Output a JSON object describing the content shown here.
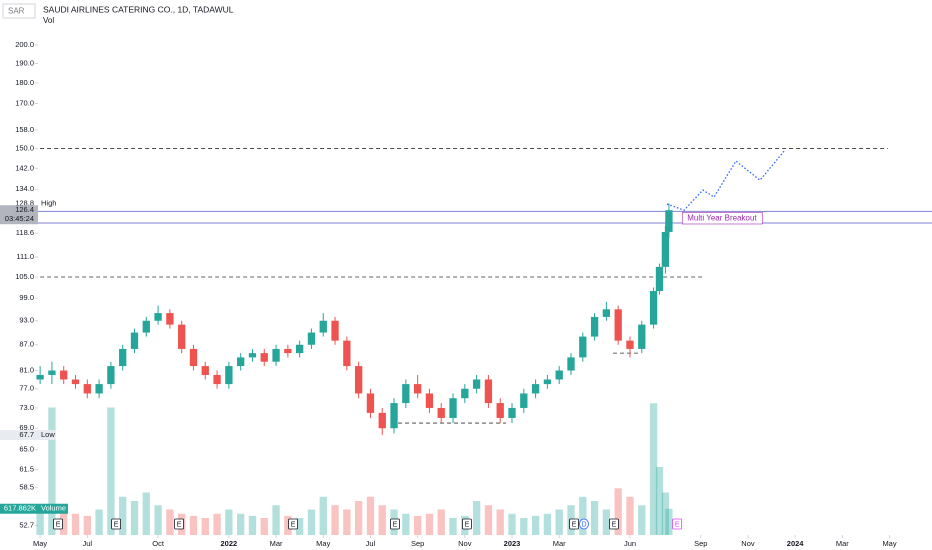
{
  "header": {
    "currency": "SAR",
    "symbol": "SAUDI AIRLINES CATERING CO., 1D, TADAWUL",
    "indicator": "Vol"
  },
  "chart_data": {
    "type": "candlestick",
    "log_scale": true,
    "xlim": [
      -1.7,
      37.8
    ],
    "ylim": [
      51.3,
      226.6
    ],
    "xticks": [
      {
        "value": 0,
        "label": "May"
      },
      {
        "value": 2,
        "label": "Jul"
      },
      {
        "value": 5,
        "label": "Oct"
      },
      {
        "value": 8,
        "label": "2022"
      },
      {
        "value": 10,
        "label": "Mar"
      },
      {
        "value": 12,
        "label": "May"
      },
      {
        "value": 14,
        "label": "Jul"
      },
      {
        "value": 16,
        "label": "Sep"
      },
      {
        "value": 18,
        "label": "Nov"
      },
      {
        "value": 20,
        "label": "2023"
      },
      {
        "value": 22,
        "label": "Mar"
      },
      {
        "value": 25,
        "label": "Jun"
      },
      {
        "value": 28,
        "label": "Sep"
      },
      {
        "value": 30,
        "label": "Nov"
      },
      {
        "value": 32,
        "label": "2024"
      },
      {
        "value": 34,
        "label": "Mar"
      },
      {
        "value": 36,
        "label": "May"
      }
    ],
    "yticks": [
      {
        "value": 200,
        "label": "200.0"
      },
      {
        "value": 190,
        "label": "190.0"
      },
      {
        "value": 180,
        "label": "180.0"
      },
      {
        "value": 170,
        "label": "170.0"
      },
      {
        "value": 158,
        "label": "158.0"
      },
      {
        "value": 150,
        "label": "150.0"
      },
      {
        "value": 142,
        "label": "142.0"
      },
      {
        "value": 134,
        "label": "134.0"
      },
      118.6,
      {
        "value": 111,
        "label": "111.0"
      },
      {
        "value": 105,
        "label": "105.0"
      },
      {
        "value": 99,
        "label": "99.0"
      },
      {
        "value": 93,
        "label": "93.0"
      },
      {
        "value": 87,
        "label": "87.0"
      },
      {
        "value": 81,
        "label": "81.0"
      },
      {
        "value": 77,
        "label": "77.0"
      },
      {
        "value": 73,
        "label": "73.0"
      },
      {
        "value": 69,
        "label": "69.0"
      },
      {
        "value": 65,
        "label": "65.0"
      },
      61.5,
      58.5,
      52.7
    ],
    "up_color": "#26a69a",
    "down_color": "#ef5350",
    "candles": {
      "x": [
        0,
        0.5,
        1,
        1.5,
        2,
        2.5,
        3,
        3.5,
        4,
        4.5,
        5,
        5.5,
        6,
        6.5,
        7,
        7.5,
        8,
        8.5,
        9,
        9.5,
        10,
        10.5,
        11,
        11.5,
        12,
        12.5,
        13,
        13.5,
        14,
        14.5,
        15,
        15.5,
        16,
        16.5,
        17,
        17.5,
        18,
        18.5,
        19,
        19.5,
        20,
        20.5,
        21,
        21.5,
        22,
        22.5,
        23,
        23.5,
        24,
        24.5,
        25,
        25.5,
        26,
        26.25,
        26.5,
        26.65
      ],
      "open": [
        79,
        80,
        81,
        79,
        78,
        76,
        78,
        82,
        86,
        90,
        93,
        95,
        92,
        86,
        82,
        80,
        78,
        82,
        84,
        85,
        83,
        86,
        85,
        87,
        90,
        93,
        88,
        82,
        76,
        72,
        69,
        74,
        78,
        76,
        73,
        71,
        75,
        77,
        79,
        74,
        71,
        73,
        76,
        78,
        79,
        81,
        84,
        89,
        94,
        96,
        88,
        86,
        92,
        101,
        108,
        119
      ],
      "high": [
        82,
        83,
        82,
        80,
        79,
        79,
        83,
        87,
        91,
        94,
        97,
        96,
        93,
        87,
        83,
        81,
        83,
        85,
        86,
        86,
        87,
        87,
        88,
        91,
        95,
        94,
        89,
        83,
        77,
        73,
        75,
        79,
        80,
        77,
        74,
        76,
        78,
        80,
        80,
        75,
        74,
        77,
        79,
        80,
        82,
        85,
        90,
        95,
        98,
        97,
        89,
        93,
        102,
        109,
        121,
        128.8
      ],
      "low": [
        78,
        78,
        78,
        77,
        75,
        75,
        77,
        81,
        85,
        89,
        92,
        91,
        85,
        81,
        79,
        77,
        77,
        81,
        83,
        82,
        82,
        84,
        84,
        86,
        89,
        87,
        81,
        75,
        71,
        67.7,
        68,
        73,
        75,
        72,
        70,
        70,
        74,
        76,
        73,
        70,
        70,
        72,
        75,
        77,
        78,
        80,
        83,
        88,
        93,
        87,
        84,
        85,
        91,
        100,
        106,
        117
      ],
      "close": [
        80,
        81,
        79,
        78,
        76,
        78,
        82,
        86,
        90,
        93,
        95,
        92,
        86,
        82,
        80,
        78,
        82,
        84,
        85,
        83,
        86,
        85,
        87,
        90,
        93,
        88,
        82,
        76,
        72,
        69,
        74,
        78,
        76,
        73,
        71,
        75,
        77,
        79,
        74,
        71,
        73,
        76,
        78,
        79,
        81,
        84,
        89,
        94,
        96,
        88,
        86,
        92,
        101,
        108,
        119,
        126.4
      ]
    },
    "volume": {
      "vlim": [
        0,
        4000
      ],
      "values": [
        600,
        3000,
        700,
        500,
        450,
        600,
        3000,
        900,
        800,
        1000,
        700,
        600,
        500,
        450,
        400,
        500,
        600,
        500,
        450,
        400,
        700,
        450,
        400,
        600,
        900,
        700,
        600,
        800,
        900,
        700,
        600,
        500,
        450,
        500,
        600,
        400,
        450,
        800,
        700,
        600,
        500,
        400,
        450,
        500,
        600,
        700,
        900,
        800,
        600,
        1100,
        900,
        700,
        3100,
        1600,
        1000,
        617.862
      ]
    },
    "high_marker": {
      "value": 128.8,
      "text": "High"
    },
    "low_marker": {
      "value": 67.7,
      "text": "Low"
    },
    "last_price": {
      "value": 126.4,
      "countdown": "03:45:24"
    },
    "last_volume": {
      "value": 617.862,
      "label": "617.862K",
      "text": "Volume"
    },
    "lines": [
      {
        "y": 150,
        "x": [
          0,
          35.93
        ]
      },
      {
        "y": 105,
        "x": [
          0,
          28.09
        ]
      },
      {
        "y": 70,
        "x": [
          15.17,
          19.75
        ]
      },
      {
        "y": 85,
        "x": [
          24.28,
          25.42
        ]
      }
    ],
    "band": {
      "y": [
        122,
        126
      ],
      "label": "Multi Year Breakout",
      "label_x": 27.3
    },
    "projection": {
      "x": [
        26.57,
        27.29,
        28.09,
        28.56,
        29.49,
        30.51,
        31.57
      ],
      "y": [
        128.6,
        126.4,
        133.7,
        131.1,
        144.9,
        137.4,
        149.4
      ]
    },
    "events": [
      {
        "x": 0.76,
        "label": "E"
      },
      {
        "x": 3.22,
        "label": "E"
      },
      {
        "x": 5.89,
        "label": "E"
      },
      {
        "x": 10.72,
        "label": "E"
      },
      {
        "x": 15.04,
        "label": "E"
      },
      {
        "x": 18.09,
        "label": "E"
      },
      {
        "x": 22.63,
        "label": "E"
      },
      {
        "x": 23.05,
        "label": "D"
      },
      {
        "x": 24.32,
        "label": "E"
      },
      {
        "x": 27.0,
        "label": "E"
      }
    ]
  }
}
